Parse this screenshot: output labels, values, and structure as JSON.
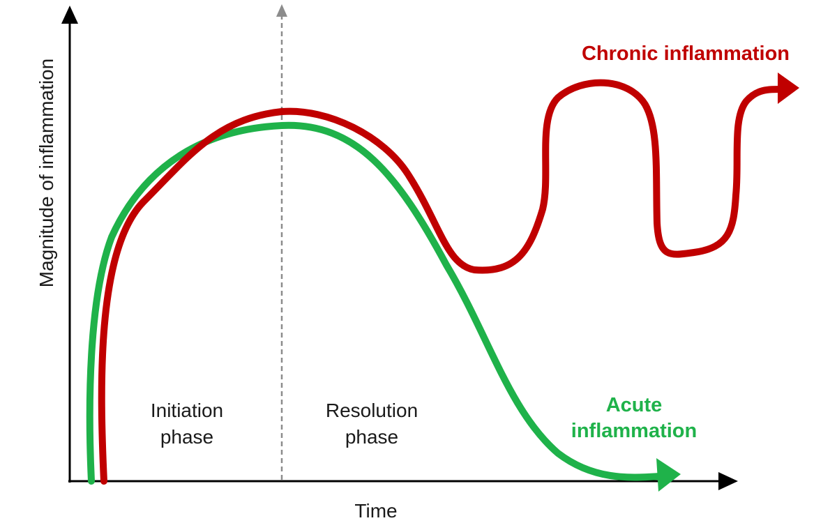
{
  "axes": {
    "x_label": "Time",
    "y_label": "Magnitude of inflammation"
  },
  "phases": {
    "initiation": {
      "line1": "Initiation",
      "line2": "phase"
    },
    "resolution": {
      "line1": "Resolution",
      "line2": "phase"
    }
  },
  "curves": {
    "chronic": {
      "label": "Chronic inflammation",
      "color": "#c00000"
    },
    "acute": {
      "label_line1": "Acute",
      "label_line2": "inflammation",
      "color": "#1fb24a"
    }
  },
  "colors": {
    "axis": "#000000",
    "divider": "#8c8c8c",
    "text": "#1a1a1a"
  }
}
